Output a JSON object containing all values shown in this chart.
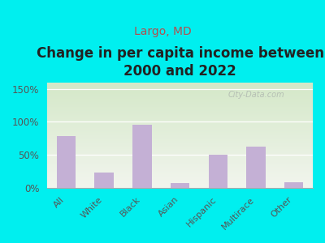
{
  "title": "Change in per capita income between\n2000 and 2022",
  "subtitle": "Largo, MD",
  "categories": [
    "All",
    "White",
    "Black",
    "Asian",
    "Hispanic",
    "Multirace",
    "Other"
  ],
  "values": [
    78,
    23,
    96,
    7,
    50,
    62,
    8
  ],
  "bar_color": "#c4b0d5",
  "title_fontsize": 12,
  "subtitle_fontsize": 10,
  "subtitle_color": "#b05050",
  "title_color": "#222222",
  "background_outer": "#00efef",
  "background_top": "#d4e8c8",
  "background_bottom": "#f2f5ee",
  "yticks": [
    0,
    50,
    100,
    150
  ],
  "ytick_labels": [
    "0%",
    "50%",
    "100%",
    "150%"
  ],
  "ylim": [
    0,
    160
  ],
  "watermark": "City-Data.com",
  "grid_color": "#e0e8d8"
}
